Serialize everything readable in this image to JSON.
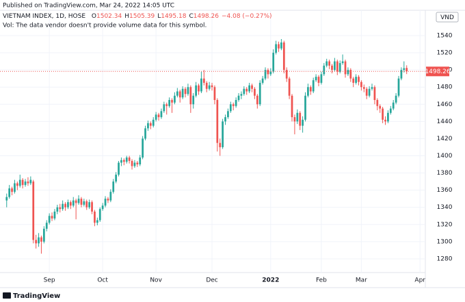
{
  "published": "Published on TradingView.com, Mar 24, 2022 14:05 UTC",
  "footer": "TradingView",
  "chart_data": {
    "type": "candlestick",
    "title": "VIETNAM INDEX, 1D, HOSE",
    "ohlc_labels": [
      "O",
      "H",
      "L",
      "C"
    ],
    "change": "−4.08 (−0.27%)",
    "note": "Vol: The data vendor doesn't provide volume data for this symbol.",
    "currency": "VND",
    "up_color": "#26a69a",
    "down_color": "#ef5350",
    "grid": true,
    "xlim": [
      -2.5,
      157
    ],
    "xticks": [
      {
        "value": 16,
        "label": "Sep"
      },
      {
        "value": 36,
        "label": "Oct"
      },
      {
        "value": 56,
        "label": "Nov"
      },
      {
        "value": 77,
        "label": "Dec"
      },
      {
        "value": 99,
        "label": "2022"
      },
      {
        "value": 118,
        "label": "Feb"
      },
      {
        "value": 133,
        "label": "Mar"
      },
      {
        "value": 155,
        "label": "Apr"
      }
    ],
    "ylim": [
      1264,
      1569.5
    ],
    "yticks": [
      1280,
      1300,
      1320,
      1340,
      1360,
      1380,
      1400,
      1420,
      1440,
      1460,
      1480,
      1500,
      1520,
      1540
    ],
    "ohlc": [
      [
        1348,
        1356,
        1340,
        1352
      ],
      [
        1352,
        1366,
        1350,
        1362
      ],
      [
        1362,
        1364,
        1354,
        1358
      ],
      [
        1358,
        1372,
        1356,
        1368
      ],
      [
        1368,
        1370,
        1360,
        1365
      ],
      [
        1365,
        1378,
        1363,
        1372
      ],
      [
        1372,
        1374,
        1362,
        1366
      ],
      [
        1366,
        1373,
        1364,
        1370
      ],
      [
        1370,
        1375,
        1365,
        1368
      ],
      [
        1368,
        1376,
        1366,
        1372
      ],
      [
        1370,
        1372,
        1298,
        1302
      ],
      [
        1302,
        1308,
        1292,
        1298
      ],
      [
        1298,
        1310,
        1294,
        1305
      ],
      [
        1305,
        1307,
        1286,
        1300
      ],
      [
        1300,
        1318,
        1298,
        1315
      ],
      [
        1315,
        1325,
        1312,
        1322
      ],
      [
        1322,
        1333,
        1320,
        1330
      ],
      [
        1330,
        1334,
        1324,
        1327
      ],
      [
        1327,
        1338,
        1325,
        1335
      ],
      [
        1335,
        1343,
        1332,
        1340
      ],
      [
        1340,
        1344,
        1334,
        1338
      ],
      [
        1338,
        1348,
        1336,
        1344
      ],
      [
        1344,
        1346,
        1336,
        1340
      ],
      [
        1340,
        1349,
        1338,
        1346
      ],
      [
        1346,
        1348,
        1338,
        1342
      ],
      [
        1342,
        1352,
        1340,
        1348
      ],
      [
        1348,
        1350,
        1326,
        1345
      ],
      [
        1345,
        1354,
        1343,
        1350
      ],
      [
        1350,
        1352,
        1340,
        1343
      ],
      [
        1343,
        1350,
        1341,
        1347
      ],
      [
        1347,
        1349,
        1337,
        1340
      ],
      [
        1340,
        1349,
        1338,
        1346
      ],
      [
        1346,
        1348,
        1332,
        1335
      ],
      [
        1335,
        1337,
        1318,
        1322
      ],
      [
        1322,
        1328,
        1319,
        1325
      ],
      [
        1325,
        1340,
        1323,
        1338
      ],
      [
        1338,
        1345,
        1336,
        1342
      ],
      [
        1342,
        1353,
        1340,
        1350
      ],
      [
        1350,
        1352,
        1345,
        1348
      ],
      [
        1348,
        1361,
        1346,
        1358
      ],
      [
        1358,
        1373,
        1356,
        1370
      ],
      [
        1370,
        1381,
        1368,
        1378
      ],
      [
        1378,
        1394,
        1376,
        1392
      ],
      [
        1392,
        1398,
        1388,
        1395
      ],
      [
        1395,
        1397,
        1389,
        1393
      ],
      [
        1393,
        1400,
        1391,
        1398
      ],
      [
        1398,
        1400,
        1391,
        1394
      ],
      [
        1394,
        1396,
        1384,
        1388
      ],
      [
        1388,
        1395,
        1386,
        1392
      ],
      [
        1392,
        1394,
        1387,
        1390
      ],
      [
        1390,
        1401,
        1388,
        1398
      ],
      [
        1398,
        1423,
        1396,
        1420
      ],
      [
        1420,
        1435,
        1418,
        1432
      ],
      [
        1432,
        1441,
        1429,
        1438
      ],
      [
        1438,
        1440,
        1431,
        1435
      ],
      [
        1435,
        1445,
        1433,
        1442
      ],
      [
        1442,
        1451,
        1440,
        1448
      ],
      [
        1448,
        1450,
        1441,
        1445
      ],
      [
        1445,
        1455,
        1443,
        1452
      ],
      [
        1452,
        1463,
        1450,
        1460
      ],
      [
        1460,
        1462,
        1448,
        1458
      ],
      [
        1458,
        1468,
        1456,
        1465
      ],
      [
        1465,
        1467,
        1450,
        1462
      ],
      [
        1462,
        1474,
        1460,
        1470
      ],
      [
        1470,
        1479,
        1468,
        1475
      ],
      [
        1475,
        1477,
        1462,
        1468
      ],
      [
        1468,
        1481,
        1466,
        1478
      ],
      [
        1478,
        1480,
        1468,
        1472
      ],
      [
        1472,
        1484,
        1470,
        1480
      ],
      [
        1480,
        1482,
        1450,
        1460
      ],
      [
        1460,
        1473,
        1455,
        1470
      ],
      [
        1470,
        1486,
        1468,
        1482
      ],
      [
        1482,
        1484,
        1471,
        1475
      ],
      [
        1475,
        1498,
        1473,
        1490
      ],
      [
        1490,
        1500,
        1482,
        1485
      ],
      [
        1485,
        1487,
        1474,
        1478
      ],
      [
        1478,
        1486,
        1476,
        1482
      ],
      [
        1482,
        1485,
        1476,
        1480
      ],
      [
        1480,
        1482,
        1460,
        1465
      ],
      [
        1465,
        1467,
        1405,
        1415
      ],
      [
        1415,
        1420,
        1400,
        1410
      ],
      [
        1410,
        1443,
        1408,
        1440
      ],
      [
        1440,
        1448,
        1436,
        1445
      ],
      [
        1445,
        1455,
        1443,
        1452
      ],
      [
        1452,
        1463,
        1450,
        1460
      ],
      [
        1460,
        1462,
        1453,
        1458
      ],
      [
        1458,
        1468,
        1456,
        1465
      ],
      [
        1465,
        1473,
        1463,
        1470
      ],
      [
        1470,
        1475,
        1466,
        1472
      ],
      [
        1472,
        1481,
        1470,
        1478
      ],
      [
        1478,
        1480,
        1471,
        1475
      ],
      [
        1475,
        1485,
        1473,
        1482
      ],
      [
        1482,
        1484,
        1474,
        1478
      ],
      [
        1478,
        1480,
        1466,
        1470
      ],
      [
        1470,
        1472,
        1455,
        1460
      ],
      [
        1460,
        1488,
        1458,
        1485
      ],
      [
        1485,
        1493,
        1483,
        1490
      ],
      [
        1490,
        1503,
        1488,
        1500
      ],
      [
        1500,
        1502,
        1490,
        1495
      ],
      [
        1495,
        1502,
        1493,
        1498
      ],
      [
        1498,
        1524,
        1496,
        1520
      ],
      [
        1520,
        1534,
        1518,
        1530
      ],
      [
        1530,
        1533,
        1521,
        1525
      ],
      [
        1525,
        1536,
        1523,
        1532
      ],
      [
        1532,
        1534,
        1496,
        1500
      ],
      [
        1500,
        1503,
        1486,
        1490
      ],
      [
        1490,
        1492,
        1466,
        1470
      ],
      [
        1470,
        1472,
        1440,
        1445
      ],
      [
        1445,
        1448,
        1425,
        1440
      ],
      [
        1440,
        1454,
        1437,
        1450
      ],
      [
        1450,
        1452,
        1430,
        1435
      ],
      [
        1435,
        1446,
        1427,
        1442
      ],
      [
        1442,
        1474,
        1440,
        1470
      ],
      [
        1470,
        1484,
        1468,
        1480
      ],
      [
        1480,
        1482,
        1471,
        1475
      ],
      [
        1475,
        1491,
        1473,
        1488
      ],
      [
        1488,
        1495,
        1486,
        1492
      ],
      [
        1492,
        1494,
        1481,
        1485
      ],
      [
        1485,
        1498,
        1483,
        1495
      ],
      [
        1495,
        1508,
        1493,
        1505
      ],
      [
        1505,
        1513,
        1503,
        1510
      ],
      [
        1510,
        1512,
        1501,
        1505
      ],
      [
        1505,
        1507,
        1496,
        1500
      ],
      [
        1500,
        1514,
        1498,
        1510
      ],
      [
        1510,
        1512,
        1494,
        1498
      ],
      [
        1498,
        1511,
        1496,
        1508
      ],
      [
        1508,
        1518,
        1506,
        1510
      ],
      [
        1510,
        1512,
        1491,
        1495
      ],
      [
        1495,
        1503,
        1493,
        1500
      ],
      [
        1500,
        1502,
        1486,
        1490
      ],
      [
        1490,
        1492,
        1480,
        1485
      ],
      [
        1485,
        1495,
        1483,
        1492
      ],
      [
        1492,
        1494,
        1482,
        1486
      ],
      [
        1486,
        1488,
        1476,
        1480
      ],
      [
        1480,
        1483,
        1474,
        1478
      ],
      [
        1478,
        1480,
        1466,
        1470
      ],
      [
        1470,
        1481,
        1468,
        1478
      ],
      [
        1478,
        1484,
        1476,
        1480
      ],
      [
        1480,
        1482,
        1460,
        1465
      ],
      [
        1465,
        1467,
        1453,
        1458
      ],
      [
        1458,
        1460,
        1450,
        1455
      ],
      [
        1455,
        1457,
        1438,
        1442
      ],
      [
        1442,
        1446,
        1436,
        1440
      ],
      [
        1440,
        1453,
        1438,
        1450
      ],
      [
        1450,
        1458,
        1448,
        1455
      ],
      [
        1455,
        1465,
        1453,
        1462
      ],
      [
        1462,
        1473,
        1460,
        1470
      ],
      [
        1470,
        1493,
        1468,
        1490
      ],
      [
        1490,
        1503,
        1488,
        1500
      ],
      [
        1500,
        1510,
        1497,
        1502
      ],
      [
        1502.34,
        1505.39,
        1495.18,
        1498.26
      ]
    ]
  }
}
